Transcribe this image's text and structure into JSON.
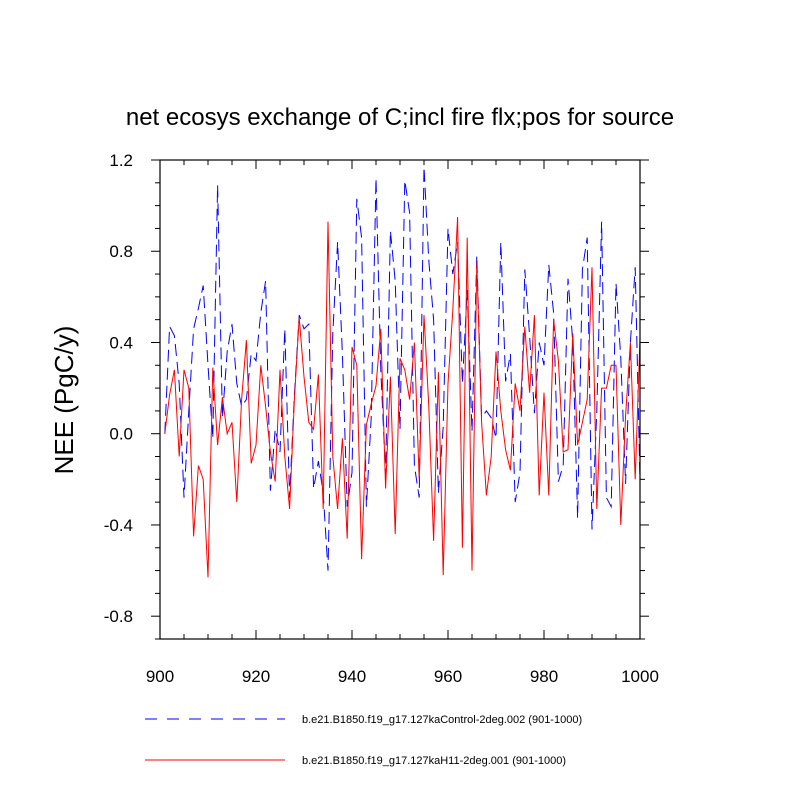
{
  "chart_data": {
    "type": "line",
    "title": "net ecosys exchange of C;incl fire flx;pos for source",
    "xlabel": "",
    "ylabel": "NEE  (PgC/y)",
    "xlim": [
      900,
      1000
    ],
    "ylim": [
      -0.9,
      1.2
    ],
    "x_ticks": [
      900,
      920,
      940,
      960,
      980,
      1000
    ],
    "x_tick_labels": [
      "900",
      "920",
      "940",
      "960",
      "980",
      "1000"
    ],
    "y_ticks": [
      -0.8,
      -0.4,
      0.0,
      0.4,
      0.8,
      1.2
    ],
    "y_tick_labels": [
      "-0.8",
      "-0.4",
      "0.0",
      "0.4",
      "0.8",
      "1.2"
    ],
    "legend_position": "bottom",
    "x": [
      901,
      902,
      903,
      904,
      905,
      906,
      907,
      908,
      909,
      910,
      911,
      912,
      913,
      914,
      915,
      916,
      917,
      918,
      919,
      920,
      921,
      922,
      923,
      924,
      925,
      926,
      927,
      928,
      929,
      930,
      931,
      932,
      933,
      934,
      935,
      936,
      937,
      938,
      939,
      940,
      941,
      942,
      943,
      944,
      945,
      946,
      947,
      948,
      949,
      950,
      951,
      952,
      953,
      954,
      955,
      956,
      957,
      958,
      959,
      960,
      961,
      962,
      963,
      964,
      965,
      966,
      967,
      968,
      969,
      970,
      971,
      972,
      973,
      974,
      975,
      976,
      977,
      978,
      979,
      980,
      981,
      982,
      983,
      984,
      985,
      986,
      987,
      988,
      989,
      990,
      991,
      992,
      993,
      994,
      995,
      996,
      997,
      998,
      999,
      1000
    ],
    "series": [
      {
        "name": "b.e21.B1850.f19_g17.127kaControl-2deg.002 (901-1000)",
        "color": "#0000ff",
        "dash": "dashed",
        "values": [
          0.0,
          0.47,
          0.43,
          0.22,
          -0.28,
          0.1,
          0.46,
          0.55,
          0.65,
          0.3,
          -0.02,
          1.09,
          0.07,
          0.36,
          0.48,
          0.22,
          0.12,
          0.15,
          0.35,
          0.32,
          0.53,
          0.67,
          -0.25,
          0.02,
          -0.08,
          0.46,
          -0.28,
          0.17,
          0.52,
          0.46,
          0.48,
          -0.24,
          -0.12,
          -0.26,
          -0.6,
          0.44,
          0.84,
          0.35,
          -0.32,
          -0.17,
          1.03,
          0.86,
          -0.32,
          0.07,
          1.12,
          0.28,
          -0.18,
          0.89,
          0.67,
          0.02,
          1.11,
          0.97,
          -0.14,
          -0.28,
          1.17,
          0.76,
          0.5,
          -0.26,
          0.03,
          0.9,
          0.7,
          0.84,
          0.22,
          0.63,
          0.01,
          0.78,
          0.07,
          0.1,
          0.07,
          -0.02,
          0.84,
          0.23,
          0.35,
          -0.3,
          -0.17,
          0.72,
          0.43,
          0.09,
          0.4,
          0.3,
          0.74,
          0.53,
          -0.21,
          -0.14,
          0.68,
          0.4,
          -0.37,
          0.72,
          0.86,
          -0.42,
          0.1,
          0.93,
          -0.28,
          -0.32,
          0.66,
          0.33,
          -0.22,
          0.4,
          0.73,
          -0.21
        ]
      },
      {
        "name": "b.e21.B1850.f19_g17.127kaH11-2deg.001 (901-1000)",
        "color": "#ff0000",
        "dash": "solid",
        "values": [
          0.0,
          0.17,
          0.28,
          -0.1,
          0.28,
          0.2,
          -0.45,
          -0.14,
          -0.2,
          -0.63,
          0.29,
          -0.05,
          0.16,
          0.0,
          0.05,
          -0.3,
          0.15,
          0.41,
          -0.13,
          -0.05,
          0.3,
          0.12,
          -0.08,
          -0.21,
          0.28,
          -0.1,
          -0.33,
          0.15,
          0.51,
          0.25,
          0.05,
          0.02,
          0.26,
          -0.33,
          0.93,
          -0.1,
          -0.33,
          -0.02,
          -0.46,
          0.38,
          0.3,
          -0.55,
          0.04,
          0.13,
          0.21,
          0.46,
          -0.24,
          0.25,
          -0.44,
          0.33,
          0.28,
          0.15,
          0.4,
          -0.2,
          0.52,
          0.12,
          -0.47,
          0.27,
          -0.62,
          0.22,
          0.54,
          0.95,
          -0.5,
          0.86,
          -0.6,
          0.75,
          0.05,
          -0.27,
          -0.1,
          0.36,
          0.1,
          -0.07,
          -0.16,
          0.22,
          0.1,
          0.47,
          0.18,
          0.52,
          -0.27,
          0.18,
          -0.27,
          0.5,
          0.32,
          -0.08,
          -0.07,
          0.44,
          -0.05,
          0.05,
          0.15,
          0.73,
          -0.33,
          0.2,
          0.2,
          0.3,
          0.3,
          -0.4,
          0.08,
          0.4,
          -0.2,
          0.42
        ]
      }
    ]
  }
}
